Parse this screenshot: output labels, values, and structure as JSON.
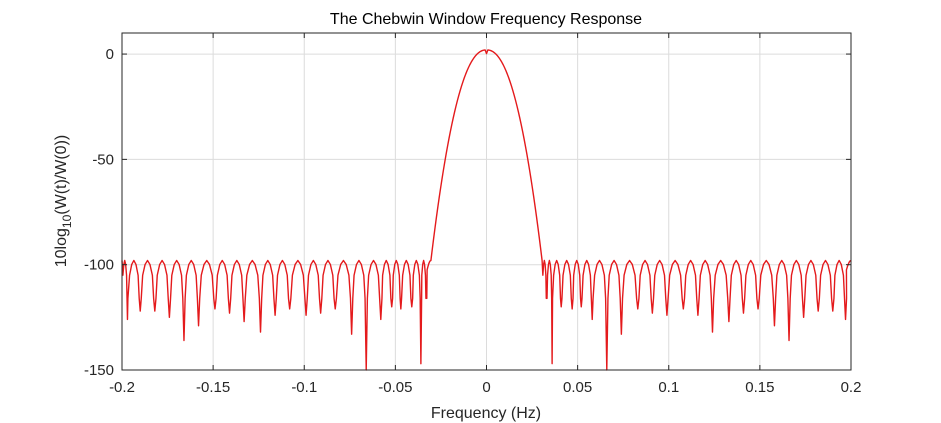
{
  "chart_data": {
    "type": "line",
    "title": "The Chebwin Window Frequency Response",
    "xlabel": "Frequency (Hz)",
    "ylabel": {
      "prefix": "10log",
      "subscript": "10",
      "suffix": "(W(t)/W(0))"
    },
    "xlim": [
      -0.2,
      0.2
    ],
    "ylim": [
      -150,
      10
    ],
    "xticks": [
      -0.2,
      -0.15,
      -0.1,
      -0.05,
      0,
      0.05,
      0.1,
      0.15,
      0.2
    ],
    "xtick_labels": [
      "-0.2",
      "-0.15",
      "-0.1",
      "-0.05",
      "0",
      "0.05",
      "0.1",
      "0.15",
      "0.2"
    ],
    "yticks": [
      0,
      -50,
      -100,
      -150
    ],
    "ytick_labels": [
      "0",
      "-50",
      "-100",
      "-150"
    ],
    "grid": true,
    "series": [
      {
        "color": "#e41a1c",
        "main_lobe": {
          "peak_db": 2,
          "edge_freq": 0.0305,
          "edge_db": -98
        },
        "sidelobe_level_db": -98,
        "nulls": [
          {
            "x": -0.197,
            "y": -126
          },
          {
            "x": -0.19,
            "y": -122
          },
          {
            "x": -0.182,
            "y": -122
          },
          {
            "x": -0.174,
            "y": -125
          },
          {
            "x": -0.166,
            "y": -136
          },
          {
            "x": -0.158,
            "y": -129
          },
          {
            "x": -0.149,
            "y": -121
          },
          {
            "x": -0.141,
            "y": -123
          },
          {
            "x": -0.133,
            "y": -127
          },
          {
            "x": -0.124,
            "y": -132
          },
          {
            "x": -0.116,
            "y": -124
          },
          {
            "x": -0.108,
            "y": -121
          },
          {
            "x": -0.099,
            "y": -124
          },
          {
            "x": -0.091,
            "y": -123
          },
          {
            "x": -0.083,
            "y": -121
          },
          {
            "x": -0.074,
            "y": -133
          },
          {
            "x": -0.066,
            "y": -150
          },
          {
            "x": -0.058,
            "y": -126
          },
          {
            "x": -0.052,
            "y": -120
          },
          {
            "x": -0.047,
            "y": -121
          },
          {
            "x": -0.041,
            "y": -120
          },
          {
            "x": -0.036,
            "y": -147
          },
          {
            "x": -0.033,
            "y": -112
          },
          {
            "x": 0.033,
            "y": -112
          },
          {
            "x": 0.036,
            "y": -147
          },
          {
            "x": 0.041,
            "y": -120
          },
          {
            "x": 0.047,
            "y": -121
          },
          {
            "x": 0.052,
            "y": -120
          },
          {
            "x": 0.058,
            "y": -126
          },
          {
            "x": 0.066,
            "y": -150
          },
          {
            "x": 0.074,
            "y": -133
          },
          {
            "x": 0.083,
            "y": -121
          },
          {
            "x": 0.091,
            "y": -123
          },
          {
            "x": 0.099,
            "y": -124
          },
          {
            "x": 0.108,
            "y": -121
          },
          {
            "x": 0.116,
            "y": -124
          },
          {
            "x": 0.124,
            "y": -132
          },
          {
            "x": 0.133,
            "y": -127
          },
          {
            "x": 0.141,
            "y": -123
          },
          {
            "x": 0.149,
            "y": -121
          },
          {
            "x": 0.158,
            "y": -129
          },
          {
            "x": 0.166,
            "y": -136
          },
          {
            "x": 0.174,
            "y": -125
          },
          {
            "x": 0.182,
            "y": -122
          },
          {
            "x": 0.19,
            "y": -122
          },
          {
            "x": 0.197,
            "y": -126
          }
        ]
      }
    ]
  }
}
